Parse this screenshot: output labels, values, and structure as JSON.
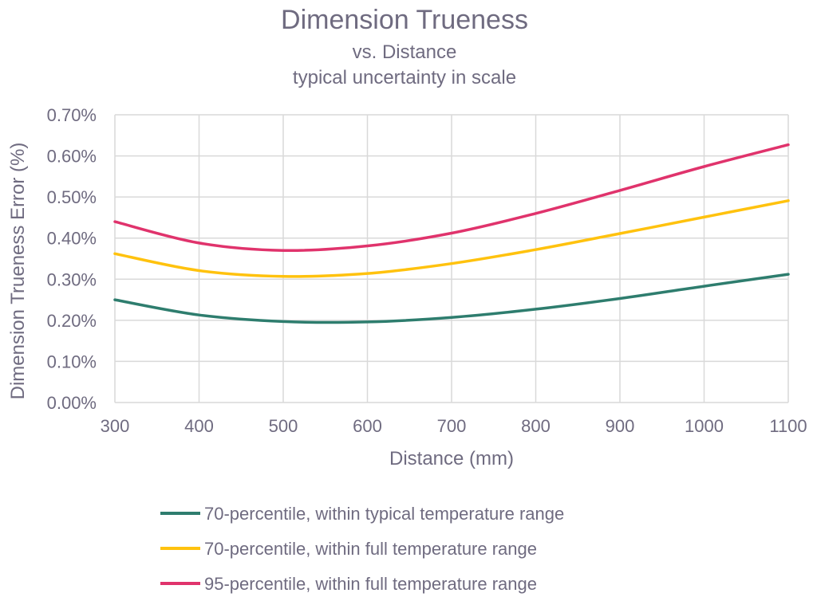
{
  "chart_data": {
    "type": "line",
    "title": "Dimension Trueness",
    "subtitle_lines": [
      "vs. Distance",
      "typical uncertainty in scale"
    ],
    "xlabel": "Distance (mm)",
    "ylabel": "Dimension Trueness Error (%)",
    "xlim": [
      300,
      1100
    ],
    "ylim": [
      0.0,
      0.7
    ],
    "x_ticks": [
      300,
      400,
      500,
      600,
      700,
      800,
      900,
      1000,
      1100
    ],
    "x_tick_labels": [
      "300",
      "400",
      "500",
      "600",
      "700",
      "800",
      "900",
      "1000",
      "1100"
    ],
    "y_ticks": [
      0.0,
      0.1,
      0.2,
      0.3,
      0.4,
      0.5,
      0.6,
      0.7
    ],
    "y_tick_labels": [
      "0.00%",
      "0.10%",
      "0.20%",
      "0.30%",
      "0.40%",
      "0.50%",
      "0.60%",
      "0.70%"
    ],
    "grid": true,
    "legend_position": "bottom",
    "x": [
      300,
      400,
      500,
      600,
      700,
      800,
      900,
      1000,
      1100
    ],
    "series": [
      {
        "name": "70-percentile, within typical temperature range",
        "color": "#2e7d6e",
        "values": [
          0.25,
          0.213,
          0.197,
          0.196,
          0.207,
          0.227,
          0.253,
          0.283,
          0.312
        ]
      },
      {
        "name": "70-percentile, within full temperature range",
        "color": "#ffc20e",
        "values": [
          0.362,
          0.321,
          0.307,
          0.314,
          0.338,
          0.372,
          0.411,
          0.451,
          0.491
        ]
      },
      {
        "name": "95-percentile, within full temperature range",
        "color": "#e0336c",
        "values": [
          0.44,
          0.388,
          0.37,
          0.381,
          0.412,
          0.46,
          0.516,
          0.574,
          0.627
        ]
      }
    ]
  }
}
